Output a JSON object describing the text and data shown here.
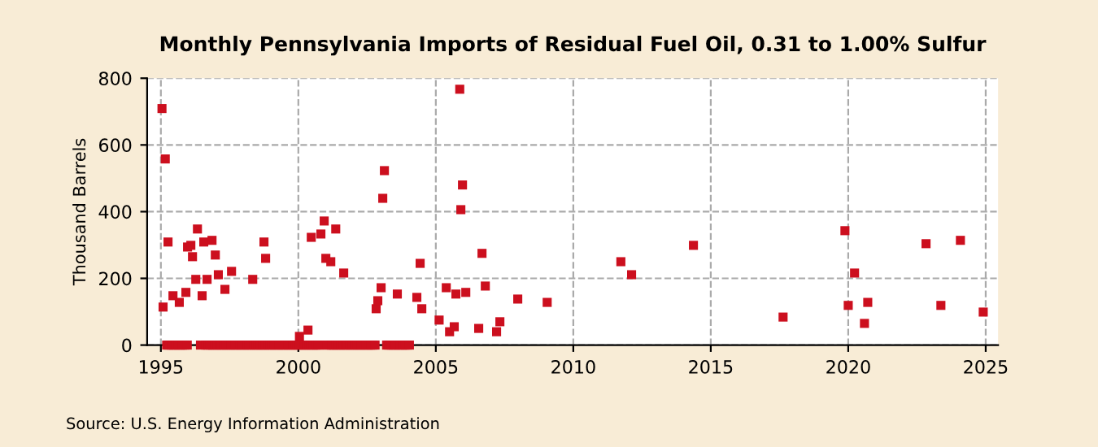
{
  "chart_data": {
    "type": "scatter",
    "title": "Monthly Pennsylvania Imports of Residual Fuel Oil, 0.31 to 1.00% Sulfur",
    "ylabel": "Thousand Barrels",
    "annotations": [
      "Source: U.S. Energy Information Administration"
    ],
    "xlim": [
      1994.5,
      2025.45
    ],
    "xticks": [
      1995,
      2000,
      2005,
      2010,
      2015,
      2020,
      2025
    ],
    "ylim": [
      0,
      800
    ],
    "yticks": [
      0,
      200,
      400,
      600,
      800
    ],
    "grid": true,
    "marker": "square",
    "series": [
      {
        "color": "#cc0f1e",
        "x": [
          1995.04,
          1995.16,
          1995.26,
          1995.08,
          1995.44,
          1995.67,
          1995.91,
          1995.97,
          1996.09,
          1996.15,
          1996.33,
          1996.27,
          1996.5,
          1996.56,
          1996.68,
          1996.86,
          1996.98,
          1997.09,
          1997.33,
          1997.57,
          1998.34,
          1998.75,
          1998.81,
          2000.04,
          2000.35,
          2000.47,
          2000.82,
          2000.94,
          2001.0,
          2001.18,
          2001.36,
          2001.65,
          2002.83,
          2002.89,
          2003.01,
          2003.07,
          2003.13,
          2003.6,
          2004.31,
          2004.43,
          2004.49,
          2005.12,
          2005.38,
          2005.5,
          2005.67,
          2005.73,
          2005.87,
          2005.97,
          2005.91,
          2006.09,
          2006.56,
          2006.68,
          2006.8,
          2007.21,
          2007.33,
          2007.98,
          2009.05,
          2011.73,
          2012.12,
          2014.37,
          2017.63,
          2019.88,
          2020.0,
          2020.23,
          2020.59,
          2020.71,
          2022.83,
          2023.37,
          2024.08,
          2024.91,
          1995.21,
          1995.29,
          1995.38,
          1995.46,
          1995.54,
          1995.63,
          1995.71,
          1995.79,
          1995.88,
          1995.96,
          1996.44,
          1996.63,
          1996.71,
          1996.79,
          1996.88,
          1996.96,
          1997.04,
          1997.13,
          1997.21,
          1997.29,
          1997.38,
          1997.46,
          1997.54,
          1997.63,
          1997.71,
          1997.79,
          1997.88,
          1997.96,
          1998.04,
          1998.13,
          1998.21,
          1998.29,
          1998.38,
          1998.46,
          1998.54,
          1998.63,
          1998.71,
          1998.79,
          1998.88,
          1998.96,
          1999.04,
          1999.13,
          1999.21,
          1999.29,
          1999.38,
          1999.46,
          1999.54,
          1999.63,
          1999.71,
          1999.79,
          1999.88,
          1999.96,
          2000.04,
          2000.13,
          2000.21,
          2000.29,
          2000.38,
          2000.46,
          2000.54,
          2000.63,
          2000.71,
          2000.79,
          2001.04,
          2001.13,
          2001.21,
          2001.29,
          2001.38,
          2001.46,
          2001.54,
          2001.63,
          2001.71,
          2001.79,
          2001.88,
          2001.96,
          2002.04,
          2002.13,
          2002.21,
          2002.29,
          2002.38,
          2002.46,
          2002.54,
          2002.63,
          2002.71,
          2002.79,
          2003.21,
          2003.29,
          2003.38,
          2003.46,
          2003.54,
          2003.63,
          2003.71,
          2003.79,
          2003.88,
          2003.96,
          2004.04
        ],
        "values": [
          709,
          558,
          309,
          114,
          148,
          128,
          158,
          294,
          299,
          265,
          348,
          197,
          148,
          309,
          197,
          314,
          270,
          211,
          167,
          221,
          197,
          309,
          260,
          26,
          45,
          323,
          333,
          372,
          260,
          250,
          348,
          216,
          109,
          133,
          172,
          440,
          523,
          153,
          143,
          245,
          109,
          75,
          172,
          40,
          55,
          153,
          767,
          480,
          406,
          158,
          50,
          275,
          177,
          40,
          70,
          138,
          128,
          250,
          211,
          299,
          84,
          343,
          119,
          216,
          65,
          128,
          304,
          119,
          314,
          99,
          0,
          0,
          0,
          0,
          0,
          0,
          0,
          0,
          0,
          0,
          0,
          0,
          0,
          0,
          0,
          0,
          0,
          0,
          0,
          0,
          0,
          0,
          0,
          0,
          0,
          0,
          0,
          0,
          0,
          0,
          0,
          0,
          0,
          0,
          0,
          0,
          0,
          0,
          0,
          0,
          0,
          0,
          0,
          0,
          0,
          0,
          0,
          0,
          0,
          0,
          0,
          0,
          0,
          0,
          0,
          0,
          0,
          0,
          0,
          0,
          0,
          0,
          0,
          0,
          0,
          0,
          0,
          0,
          0,
          0,
          0,
          0,
          0,
          0,
          0,
          0,
          0,
          0,
          0,
          0,
          0,
          0,
          0,
          0,
          0,
          0,
          0,
          0,
          0,
          0,
          0,
          0,
          0,
          0,
          0
        ]
      }
    ]
  }
}
